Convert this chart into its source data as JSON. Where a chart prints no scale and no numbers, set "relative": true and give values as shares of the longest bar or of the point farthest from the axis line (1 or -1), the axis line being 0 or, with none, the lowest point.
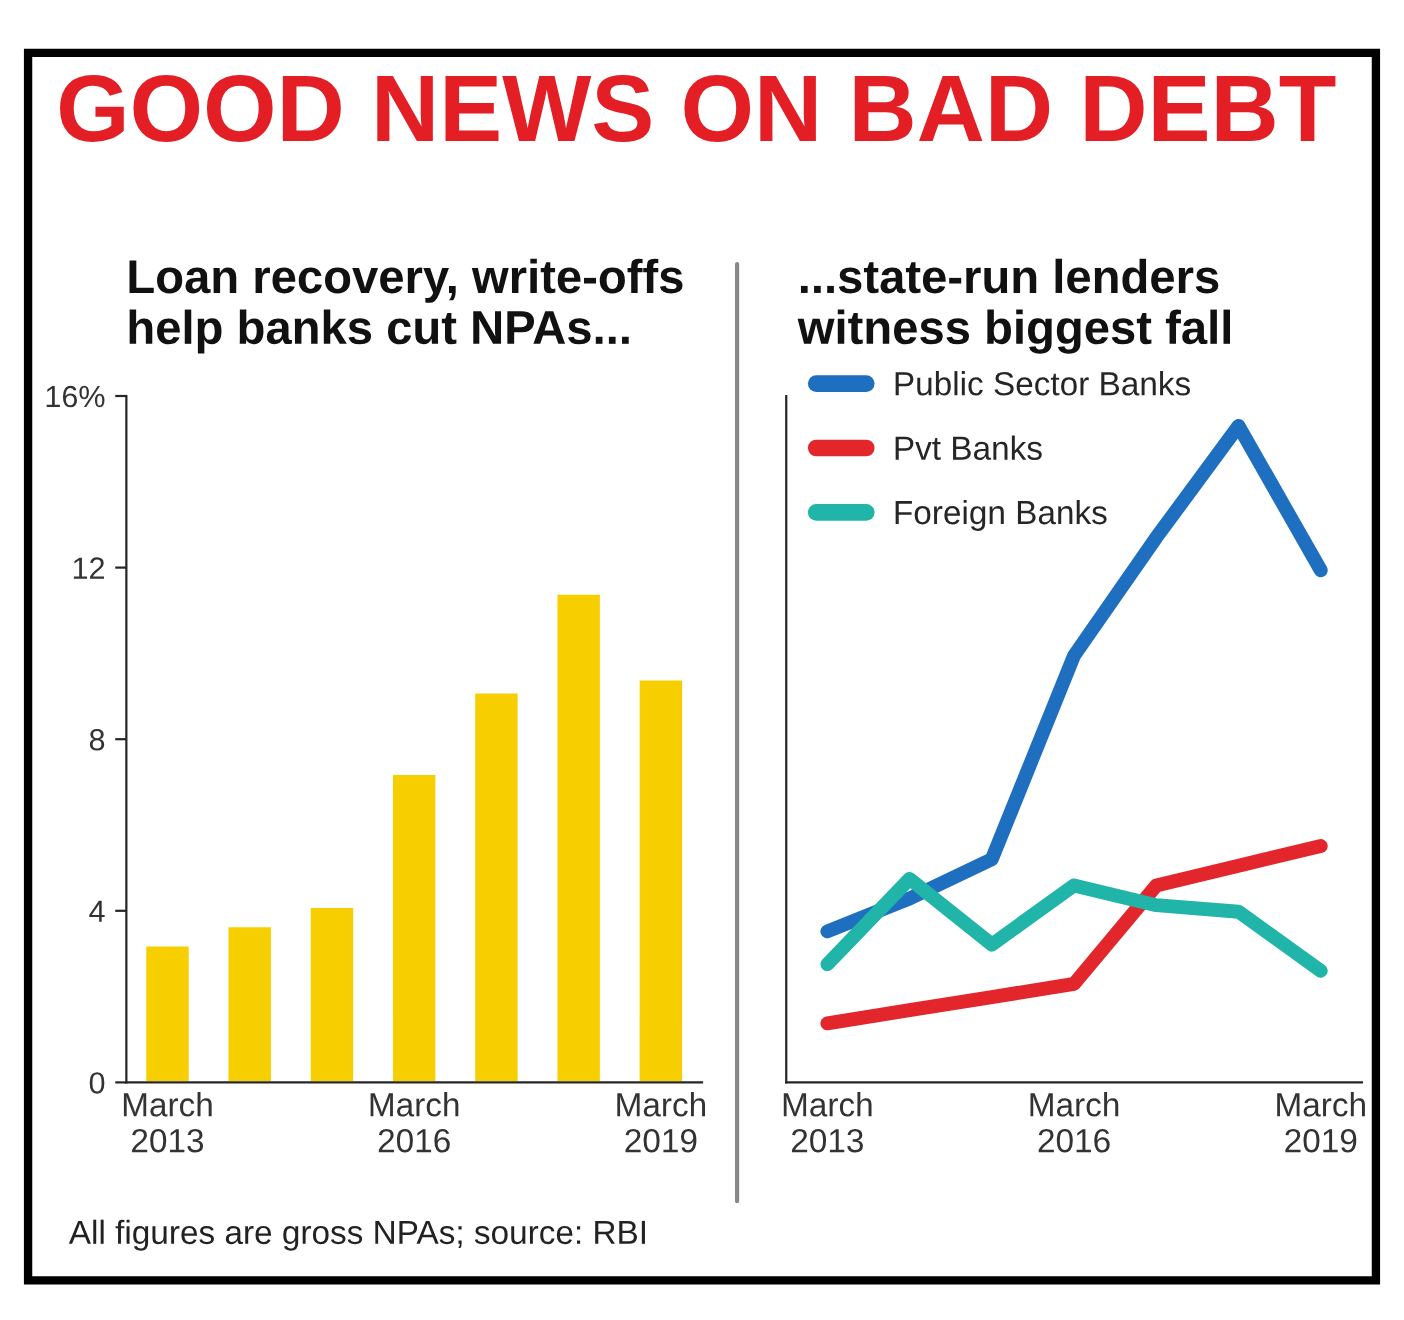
{
  "chart_data": [
    {
      "type": "bar",
      "title": "GOOD NEWS ON BAD DEBT",
      "subtitle": "Loan recovery, write-offs\nhelp banks cut NPAs...",
      "categories": [
        "March\n2013",
        null,
        null,
        "March\n2016",
        null,
        null,
        "March\n2019"
      ],
      "values": [
        3.2,
        3.65,
        4.1,
        7.2,
        9.1,
        11.4,
        9.4
      ],
      "color": "#f7cf00",
      "ylim": [
        0,
        16
      ],
      "yticks": [
        0,
        4,
        8,
        12,
        {
          "value": 16,
          "label": "16%"
        }
      ],
      "grid": false,
      "annotations": [
        "All figures are gross NPAs; source: RBI"
      ]
    },
    {
      "type": "line",
      "subtitle": "...state-run lenders\nwitness biggest fall",
      "categories": [
        "March\n2013",
        null,
        null,
        "March\n2016",
        null,
        null,
        "March\n2019"
      ],
      "relative": true,
      "legend": "top left",
      "grid": false,
      "tick_labels": "x",
      "series": [
        {
          "name": "Public Sector Banks",
          "color": "#1f6fc0",
          "values": [
            0.23,
            0.28,
            0.34,
            0.65,
            0.83,
            1.0,
            0.78
          ]
        },
        {
          "name": "Pvt Banks",
          "color": "#e3262b",
          "values": [
            0.09,
            0.11,
            0.13,
            0.15,
            0.3,
            0.33,
            0.36
          ]
        },
        {
          "name": "Foreign Banks",
          "color": "#20b5a8",
          "values": [
            0.18,
            0.31,
            0.21,
            0.3,
            0.27,
            0.26,
            0.17
          ]
        }
      ]
    }
  ]
}
